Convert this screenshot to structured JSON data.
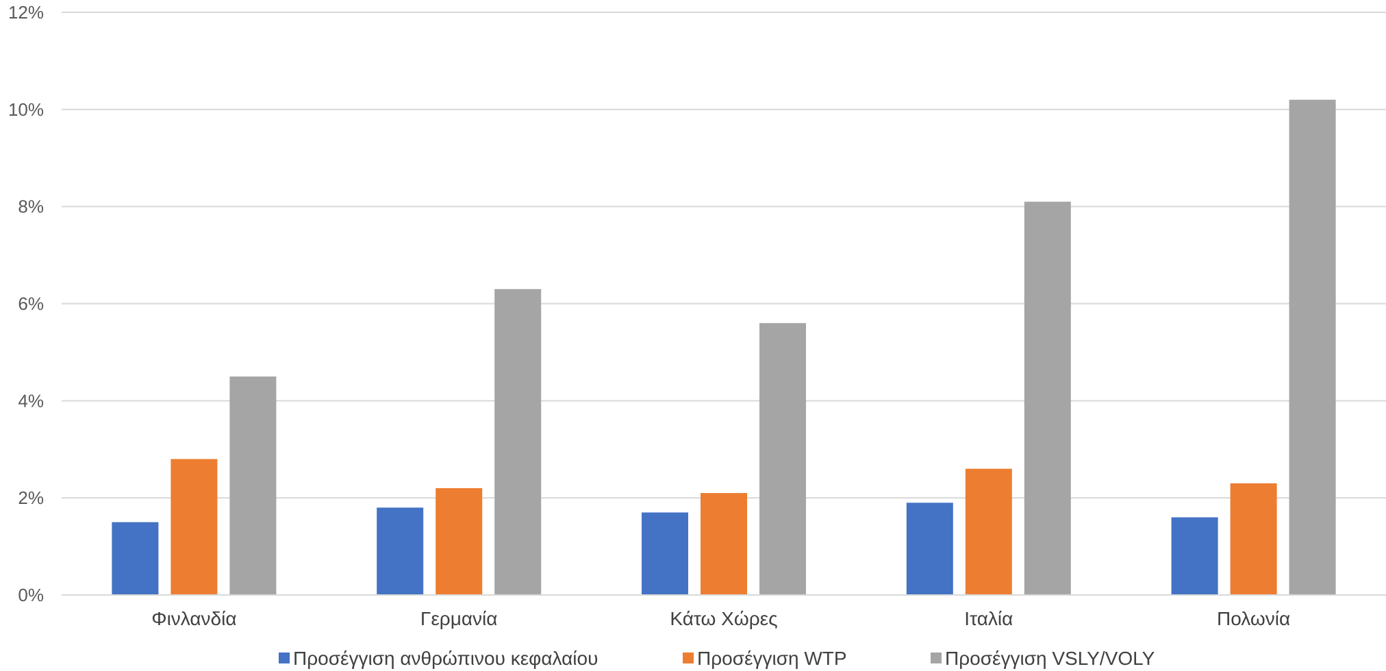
{
  "chart_data": {
    "type": "bar",
    "categories": [
      "Φινλανδία",
      "Γερμανία",
      "Κάτω Χώρες",
      "Ιταλία",
      "Πολωνία"
    ],
    "series": [
      {
        "name": "Προσέγγιση ανθρώπινου κεφαλαίου",
        "color": "#4472c4",
        "values": [
          1.5,
          1.8,
          1.7,
          1.9,
          1.6
        ]
      },
      {
        "name": "Προσέγγιση WTP",
        "color": "#ed7d31",
        "values": [
          2.8,
          2.2,
          2.1,
          2.6,
          2.3
        ]
      },
      {
        "name": "Προσέγγιση VSLY/VOLY",
        "color": "#a5a5a5",
        "values": [
          4.5,
          6.3,
          5.6,
          8.1,
          10.2
        ]
      }
    ],
    "yticks": [
      "0%",
      "2%",
      "4%",
      "6%",
      "8%",
      "10%",
      "12%"
    ],
    "ylim": [
      0,
      12
    ],
    "yunit": "%",
    "grid": true,
    "legend_position": "bottom"
  }
}
